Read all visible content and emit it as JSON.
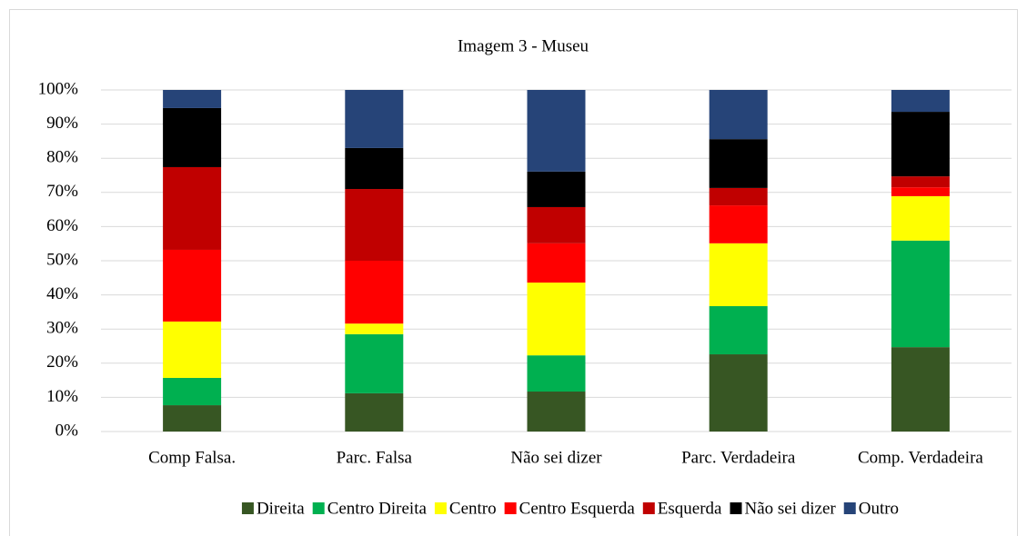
{
  "chart_data": {
    "type": "stacked_bar",
    "title": "Imagem 3 - Museu",
    "categories": [
      "Comp Falsa.",
      "Parc. Falsa",
      "Não sei dizer",
      "Parc. Verdadeira",
      "Comp. Verdadeira"
    ],
    "series": [
      {
        "name": "Direita",
        "color": "#375623",
        "values": [
          7.7,
          11.2,
          11.7,
          22.6,
          24.7
        ]
      },
      {
        "name": "Centro Direita",
        "color": "#00b050",
        "values": [
          8.0,
          17.3,
          10.6,
          14.1,
          31.2
        ]
      },
      {
        "name": "Centro",
        "color": "#ffff00",
        "values": [
          16.5,
          3.1,
          21.3,
          18.4,
          13.0
        ]
      },
      {
        "name": "Centro Esquerda",
        "color": "#ff0000",
        "values": [
          21.0,
          18.4,
          11.5,
          11.1,
          2.6
        ]
      },
      {
        "name": "Esquerda",
        "color": "#c00000",
        "values": [
          24.2,
          21.0,
          10.6,
          5.1,
          3.2
        ]
      },
      {
        "name": "Não sei dizer",
        "color": "#000000",
        "values": [
          17.3,
          12.0,
          10.4,
          14.3,
          18.9
        ]
      },
      {
        "name": "Outro",
        "color": "#264478",
        "values": [
          5.3,
          17.0,
          23.9,
          14.4,
          6.4
        ]
      }
    ],
    "ylim": [
      0,
      100
    ],
    "yticks": [
      {
        "value": 0,
        "label": "0%"
      },
      {
        "value": 10,
        "label": "10%"
      },
      {
        "value": 20,
        "label": "20%"
      },
      {
        "value": 30,
        "label": "30%"
      },
      {
        "value": 40,
        "label": "40%"
      },
      {
        "value": 50,
        "label": "50%"
      },
      {
        "value": 60,
        "label": "60%"
      },
      {
        "value": 70,
        "label": "70%"
      },
      {
        "value": 80,
        "label": "80%"
      },
      {
        "value": 90,
        "label": "90%"
      },
      {
        "value": 100,
        "label": "100%"
      }
    ],
    "grid": true,
    "legend": "bottom"
  }
}
